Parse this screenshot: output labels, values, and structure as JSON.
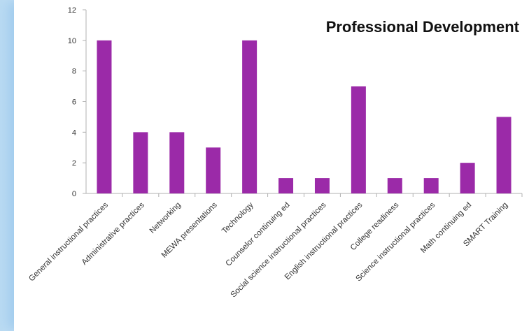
{
  "chart_data": {
    "type": "bar",
    "title": "Professional Development",
    "categories": [
      "General instructional practices",
      "Administrative practices",
      "Networking",
      "MEWA presentations",
      "Technology",
      "Counselor continuing ed",
      "Social science instructional practices",
      "English instructional practices",
      "College readiness",
      "Science instructional practices",
      "Math continuing ed",
      "SMART Training"
    ],
    "values": [
      10,
      4,
      4,
      3,
      10,
      1,
      1,
      7,
      1,
      1,
      2,
      5
    ],
    "ylim": [
      0,
      12
    ],
    "yticks": [
      0,
      2,
      4,
      6,
      8,
      10,
      12
    ],
    "xlabel": "",
    "ylabel": "",
    "grid": false,
    "legend": "none",
    "bar_color": "#9b2aa8",
    "axis_color": "#b0b0b0"
  }
}
